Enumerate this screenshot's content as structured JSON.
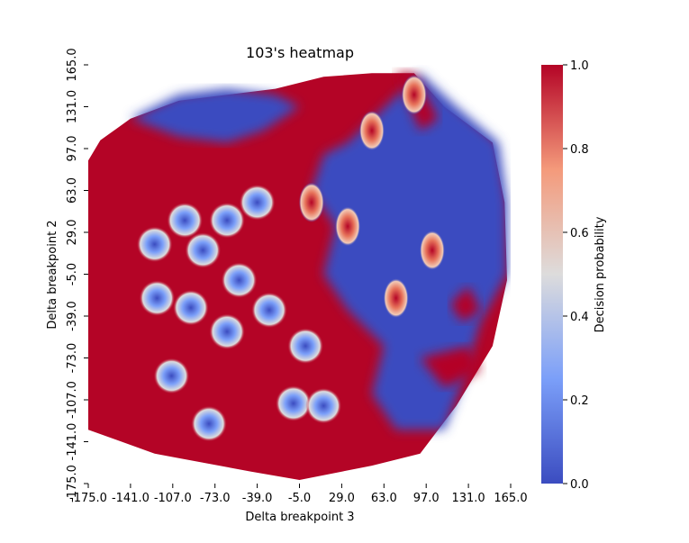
{
  "chart_data": {
    "type": "heatmap",
    "title": "103's heatmap",
    "xlabel": "Delta breakpoint 3",
    "ylabel": "Delta breakpoint 2",
    "colorbar_label": "Decision probability",
    "xlim": [
      -175,
      175
    ],
    "ylim": [
      -175,
      175
    ],
    "x_ticks": [
      "-175.0",
      "-141.0",
      "-107.0",
      "-73.0",
      "-39.0",
      "-5.0",
      "29.0",
      "63.0",
      "97.0",
      "131.0",
      "165.0"
    ],
    "y_ticks": [
      "165.0",
      "131.0",
      "97.0",
      "63.0",
      "29.0",
      "-5.0",
      "-39.0",
      "-73.0",
      "-107.0",
      "-141.0",
      "-175.0"
    ],
    "colorbar_ticks": [
      "1.0",
      "0.8",
      "0.6",
      "0.4",
      "0.2",
      "0.0"
    ],
    "colorbar_range": [
      0,
      1
    ],
    "colormap": "coolwarm",
    "colors": {
      "low": "#3b4cc0",
      "mid": "#dddcdc",
      "high": "#b40426"
    },
    "regions": [
      {
        "x": [
          -175,
          -160,
          -130,
          -110,
          -60,
          -20,
          0
        ],
        "y": [
          -130,
          -140,
          -150,
          -160,
          -168,
          -170,
          -170
        ],
        "poly": [
          [
            -175,
            95
          ],
          [
            -165,
            112
          ],
          [
            -140,
            130
          ],
          [
            -100,
            145
          ],
          [
            -60,
            150
          ],
          [
            -20,
            155
          ],
          [
            20,
            165
          ],
          [
            60,
            168
          ],
          [
            95,
            168
          ],
          [
            120,
            140
          ],
          [
            160,
            110
          ],
          [
            170,
            60
          ],
          [
            172,
            -5
          ],
          [
            160,
            -60
          ],
          [
            130,
            -110
          ],
          [
            100,
            -150
          ],
          [
            60,
            -160
          ],
          [
            0,
            -172
          ],
          [
            -40,
            -165
          ],
          [
            -120,
            -150
          ],
          [
            -175,
            -130
          ]
        ]
      },
      {
        "level": 0.0,
        "poly": [
          [
            40,
            110
          ],
          [
            100,
            168
          ],
          [
            130,
            140
          ],
          [
            165,
            110
          ],
          [
            172,
            60
          ],
          [
            172,
            0
          ],
          [
            150,
            -40
          ],
          [
            135,
            -90
          ],
          [
            120,
            -130
          ],
          [
            80,
            -130
          ],
          [
            60,
            -100
          ],
          [
            70,
            -60
          ],
          [
            40,
            -30
          ],
          [
            20,
            0
          ],
          [
            30,
            40
          ],
          [
            10,
            70
          ],
          [
            20,
            100
          ]
        ]
      },
      {
        "level": 0.0,
        "poly": [
          [
            -140,
            130
          ],
          [
            -100,
            150
          ],
          [
            -60,
            155
          ],
          [
            -20,
            150
          ],
          [
            0,
            140
          ],
          [
            -30,
            120
          ],
          [
            -60,
            110
          ],
          [
            -100,
            115
          ]
        ]
      },
      {
        "level": 1.0,
        "poly": [
          [
            80,
            168
          ],
          [
            95,
            168
          ],
          [
            115,
            130
          ],
          [
            100,
            120
          ]
        ]
      },
      {
        "level": 1.0,
        "poly": [
          [
            100,
            -70
          ],
          [
            140,
            -60
          ],
          [
            150,
            -80
          ],
          [
            120,
            -95
          ]
        ]
      },
      {
        "level": 1.0,
        "poly": [
          [
            125,
            -25
          ],
          [
            140,
            -10
          ],
          [
            150,
            -30
          ],
          [
            135,
            -40
          ]
        ]
      }
    ],
    "cold_spots": [
      {
        "x": -118,
        "y": -20
      },
      {
        "x": -106,
        "y": -85
      },
      {
        "x": -60,
        "y": -48
      },
      {
        "x": -90,
        "y": -28
      },
      {
        "x": -80,
        "y": 20
      },
      {
        "x": -50,
        "y": -5
      },
      {
        "x": -25,
        "y": -30
      },
      {
        "x": -5,
        "y": -108
      },
      {
        "x": 5,
        "y": -60
      },
      {
        "x": -75,
        "y": -125
      },
      {
        "x": 20,
        "y": -110
      },
      {
        "x": -60,
        "y": 45
      },
      {
        "x": -95,
        "y": 45
      },
      {
        "x": -35,
        "y": 60
      },
      {
        "x": -120,
        "y": 25
      }
    ]
  }
}
